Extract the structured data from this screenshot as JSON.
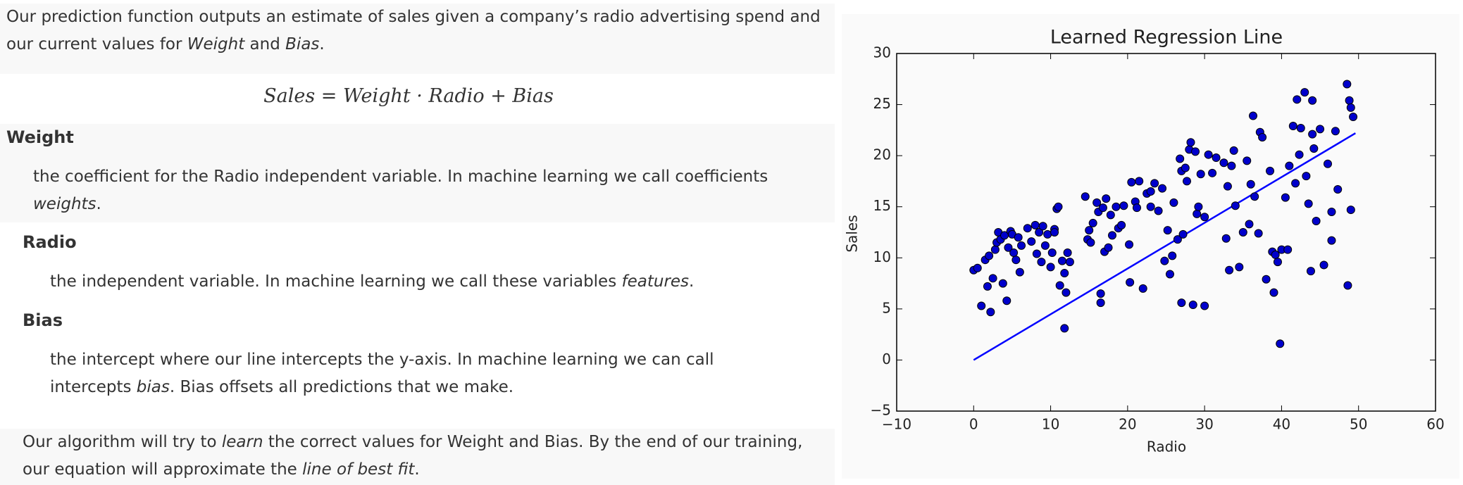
{
  "text": {
    "intro": [
      "Our prediction function outputs an estimate of sales given a company’s radio advertising spend and our current values for ",
      "Weight",
      " and ",
      "Bias",
      "."
    ],
    "equation": "Sales = Weight · Radio + Bias",
    "weight_heading": "Weight",
    "weight_def": [
      "the coefficient for the Radio independent variable. In machine learning we call coefficients ",
      "weights",
      "."
    ],
    "radio_heading": "Radio",
    "radio_def": [
      "the independent variable. In machine learning we call these variables ",
      "features",
      "."
    ],
    "bias_heading": "Bias",
    "bias_def": [
      "the intercept where our line intercepts the y-axis. In machine learning we can call intercepts ",
      "bias",
      ". Bias offsets all predictions that we make."
    ],
    "outro": [
      "Our algorithm will try to ",
      "learn",
      " the correct values for Weight and Bias. By the end of our training, our equation will approximate the ",
      "line of best fit",
      "."
    ]
  },
  "chart_data": {
    "type": "scatter",
    "title": "Learned Regression Line",
    "x_label": "Radio",
    "y_label": "Sales",
    "xlim": [
      -10,
      60
    ],
    "ylim": [
      -5,
      30
    ],
    "xticks": [
      {
        "value": -10,
        "label": "−10"
      },
      0,
      10,
      20,
      30,
      40,
      50,
      60
    ],
    "yticks": [
      {
        "value": -5,
        "label": "−5"
      },
      0,
      5,
      10,
      15,
      20,
      25,
      30
    ],
    "color": "#0000cc",
    "x": [
      0,
      0.5,
      1,
      1.5,
      1.8,
      2,
      2.2,
      2.5,
      2.8,
      3,
      3.2,
      3.5,
      3.8,
      4,
      4.3,
      4.5,
      4.8,
      5,
      5.2,
      5.5,
      5.8,
      6,
      6.2,
      7,
      7.5,
      8,
      8.2,
      8.5,
      8.8,
      9,
      9.3,
      9.6,
      10,
      10.2,
      10.5,
      10.8,
      11,
      11.2,
      11.5,
      11.8,
      12,
      12.2,
      12.5,
      11.8,
      10.5,
      14.5,
      14.8,
      15,
      15.2,
      15.5,
      16,
      16.2,
      16.5,
      16.5,
      16.8,
      17,
      17.2,
      17.5,
      17.8,
      18,
      18.5,
      18.8,
      19.2,
      19.5,
      20.2,
      20.3,
      20.5,
      21,
      21.2,
      21.5,
      22,
      22.5,
      23,
      23,
      23.5,
      24,
      24.5,
      24.8,
      25.2,
      25.5,
      25.8,
      26,
      26.5,
      26.8,
      27,
      27,
      27.2,
      27.5,
      27.7,
      28,
      28.2,
      28.5,
      28.8,
      29,
      29.2,
      29.5,
      30,
      30,
      30.5,
      31,
      31.5,
      32.5,
      32.8,
      33,
      33.2,
      33.5,
      33.8,
      34,
      34.5,
      35,
      35.5,
      35.8,
      36,
      36.3,
      36.5,
      37,
      37.2,
      37.5,
      38,
      38.5,
      38.8,
      39,
      39.2,
      39.5,
      39.8,
      40,
      40.5,
      40.8,
      41,
      41.5,
      41.8,
      42,
      42.3,
      42.5,
      43,
      43.2,
      43.5,
      43.8,
      44,
      44,
      44.2,
      44.5,
      45,
      45.5,
      46,
      46.5,
      46.5,
      47,
      47.3,
      48.5,
      48.6,
      48.8,
      49,
      49,
      49.3
    ],
    "values": [
      8.8,
      9,
      5.3,
      9.8,
      7.2,
      10.2,
      4.7,
      8,
      10.8,
      11.5,
      12.5,
      11.8,
      7.5,
      12.2,
      5.8,
      11,
      12.6,
      12.3,
      10.5,
      9.8,
      12,
      8.6,
      11.2,
      12.9,
      11.6,
      13.2,
      10.4,
      12.5,
      9.6,
      13.1,
      11.2,
      12.3,
      9.1,
      10.5,
      12.8,
      14.8,
      15,
      7.3,
      9.7,
      3.1,
      6.6,
      10.5,
      9.6,
      8.5,
      12.5,
      16,
      11.8,
      12.7,
      11.5,
      13.4,
      15.4,
      14.5,
      6.5,
      5.6,
      14.9,
      10.6,
      15.8,
      11,
      14.2,
      12.2,
      15,
      12.9,
      13.2,
      15.1,
      11.3,
      7.6,
      17.4,
      15.5,
      14.9,
      17.5,
      7,
      16.3,
      16.5,
      15,
      17.3,
      14.6,
      16.8,
      9.7,
      12.7,
      8.4,
      10.2,
      15.4,
      11.8,
      19.7,
      18.5,
      5.6,
      12.3,
      18.8,
      17.5,
      20.6,
      21.3,
      5.4,
      20.4,
      14.3,
      15,
      18.2,
      14,
      5.3,
      20.1,
      18.3,
      19.8,
      19.3,
      11.9,
      17,
      8.8,
      19,
      20.5,
      15.1,
      9.1,
      12.5,
      19.5,
      13.3,
      17.2,
      23.9,
      16,
      12.4,
      22.3,
      21.8,
      7.9,
      18.5,
      10.6,
      6.6,
      10.3,
      9.6,
      1.6,
      10.8,
      15.9,
      10.8,
      19,
      22.9,
      17.3,
      25.5,
      20.1,
      22.7,
      26.2,
      18,
      15.3,
      8.7,
      25.4,
      22.1,
      20.7,
      13.6,
      22.6,
      9.3,
      19.2,
      11.7,
      14.5,
      22.4,
      16.7,
      27,
      7.3,
      25.4,
      24.7,
      14.7,
      23.8
    ],
    "line": {
      "x": [
        0,
        49.6
      ],
      "values": [
        0,
        22.2
      ],
      "color": "#0000ff"
    }
  }
}
